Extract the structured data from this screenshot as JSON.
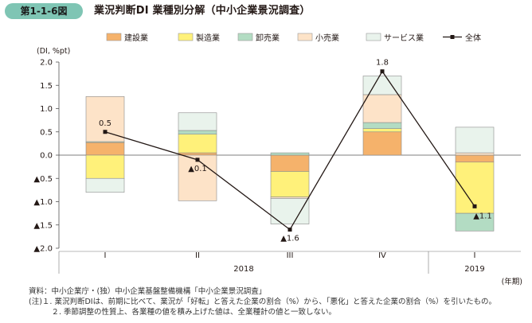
{
  "figure_label": "第1-1-6図",
  "chart_data": {
    "type": "bar",
    "title": "業況判断DI 業種別分解（中小企業景況調査）",
    "y_unit": "(DI, %pt)",
    "x_unit": "(年期)",
    "ylim": [
      -2.0,
      2.0
    ],
    "y_ticks": [
      2.0,
      1.5,
      1.0,
      0.5,
      0.0,
      -0.5,
      -1.0,
      -1.5,
      -2.0
    ],
    "y_tick_labels": [
      "2.0",
      "1.5",
      "1.0",
      "0.5",
      "0.0",
      "▲0.5",
      "▲1.0",
      "▲1.5",
      "▲2.0"
    ],
    "categories": [
      "I",
      "II",
      "III",
      "IV",
      "I"
    ],
    "years": [
      {
        "label": "2018",
        "start": 0,
        "end": 3
      },
      {
        "label": "2019",
        "start": 4,
        "end": 4
      }
    ],
    "series": [
      {
        "name": "建設業",
        "color": "#f5b26b",
        "values": [
          0.27,
          0.05,
          -0.35,
          0.5,
          -0.15
        ]
      },
      {
        "name": "製造業",
        "color": "#fff17a",
        "values": [
          -0.5,
          0.4,
          -0.55,
          0.07,
          -1.1
        ]
      },
      {
        "name": "卸売業",
        "color": "#b3dcc3",
        "values": [
          0.02,
          0.08,
          0.05,
          0.13,
          -0.38
        ]
      },
      {
        "name": "小売業",
        "color": "#fde3c8",
        "values": [
          0.97,
          -0.98,
          -0.03,
          0.6,
          0.05
        ]
      },
      {
        "name": "サービス業",
        "color": "#e9f3ec",
        "values": [
          -0.3,
          0.38,
          -0.55,
          0.4,
          0.55
        ]
      }
    ],
    "total": {
      "name": "全体",
      "values": [
        0.5,
        -0.1,
        -1.6,
        1.8,
        -1.1
      ],
      "labels": [
        "0.5",
        "▲0.1",
        "▲1.6",
        "1.8",
        "▲1.1"
      ]
    },
    "legend_position": "top"
  },
  "notes": [
    "資料：中小企業庁・(独）中小企業基盤整備機構「中小企業景況調査」",
    "(注)１. 業況判断DIは、前期に比べて、業況が「好転」と答えた企業の割合（%）から、「悪化」と答えた企業の割合（%）を引いたもの。",
    "　　　２. 季節調整の性質上、各業種の値を積み上げた値は、全業種計の値と一致しない。"
  ]
}
